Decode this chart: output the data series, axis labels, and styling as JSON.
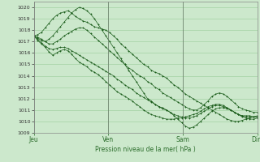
{
  "title": "Pression niveau de la mer( hPa )",
  "ylim": [
    1009,
    1020.5
  ],
  "yticks": [
    1009,
    1010,
    1011,
    1012,
    1013,
    1014,
    1015,
    1016,
    1017,
    1018,
    1019,
    1020
  ],
  "xtick_labels": [
    "Jeu",
    "Ven",
    "Sam",
    "Dim"
  ],
  "bg_color": "#cce8cc",
  "grid_color": "#99cc99",
  "line_color": "#1a5c1a",
  "series": [
    [
      1017.5,
      1017.6,
      1017.8,
      1018.2,
      1018.6,
      1019.0,
      1019.3,
      1019.5,
      1019.6,
      1019.7,
      1019.5,
      1019.2,
      1019.0,
      1018.8,
      1018.7,
      1018.5,
      1018.3,
      1018.2,
      1018.1,
      1018.0,
      1017.8,
      1017.5,
      1017.2,
      1016.8,
      1016.5,
      1016.2,
      1015.9,
      1015.6,
      1015.3,
      1015.0,
      1014.8,
      1014.5,
      1014.3,
      1014.2,
      1014.0,
      1013.8,
      1013.5,
      1013.2,
      1013.0,
      1012.7,
      1012.4,
      1012.2,
      1012.0,
      1011.8,
      1011.6,
      1011.4,
      1011.2,
      1011.0,
      1010.8,
      1010.6,
      1010.4,
      1010.2,
      1010.1,
      1010.0,
      1010.0,
      1010.1,
      1010.2,
      1010.3,
      1010.4,
      1010.5
    ],
    [
      1017.5,
      1017.3,
      1017.1,
      1017.0,
      1017.2,
      1017.5,
      1017.9,
      1018.3,
      1018.7,
      1019.1,
      1019.5,
      1019.8,
      1020.0,
      1019.9,
      1019.7,
      1019.4,
      1019.0,
      1018.5,
      1018.0,
      1017.5,
      1017.0,
      1016.5,
      1016.0,
      1015.5,
      1015.0,
      1014.5,
      1014.0,
      1013.5,
      1013.0,
      1012.5,
      1012.0,
      1011.8,
      1011.5,
      1011.3,
      1011.2,
      1011.0,
      1010.8,
      1010.5,
      1010.2,
      1009.9,
      1009.6,
      1009.4,
      1009.5,
      1009.7,
      1010.0,
      1010.3,
      1010.6,
      1010.9,
      1011.1,
      1011.2,
      1011.2,
      1011.1,
      1011.0,
      1010.8,
      1010.6,
      1010.4,
      1010.3,
      1010.2,
      1010.2,
      1010.3
    ],
    [
      1017.5,
      1017.2,
      1016.9,
      1016.6,
      1016.4,
      1016.3,
      1016.4,
      1016.5,
      1016.5,
      1016.4,
      1016.2,
      1016.0,
      1015.8,
      1015.6,
      1015.4,
      1015.2,
      1015.0,
      1014.8,
      1014.6,
      1014.4,
      1014.2,
      1014.0,
      1013.7,
      1013.5,
      1013.2,
      1013.0,
      1012.8,
      1012.5,
      1012.3,
      1012.1,
      1011.9,
      1011.7,
      1011.5,
      1011.3,
      1011.1,
      1011.0,
      1010.8,
      1010.6,
      1010.5,
      1010.4,
      1010.3,
      1010.3,
      1010.4,
      1010.5,
      1010.7,
      1010.9,
      1011.1,
      1011.3,
      1011.4,
      1011.4,
      1011.3,
      1011.2,
      1011.0,
      1010.8,
      1010.6,
      1010.5,
      1010.4,
      1010.4,
      1010.4,
      1010.4
    ],
    [
      1017.5,
      1017.1,
      1016.8,
      1016.5,
      1016.1,
      1015.8,
      1016.0,
      1016.2,
      1016.3,
      1016.2,
      1015.9,
      1015.5,
      1015.2,
      1015.0,
      1014.8,
      1014.5,
      1014.3,
      1014.1,
      1013.8,
      1013.5,
      1013.2,
      1012.9,
      1012.6,
      1012.4,
      1012.2,
      1012.0,
      1011.8,
      1011.5,
      1011.3,
      1011.0,
      1010.8,
      1010.6,
      1010.5,
      1010.4,
      1010.3,
      1010.2,
      1010.2,
      1010.2,
      1010.3,
      1010.3,
      1010.4,
      1010.5,
      1010.6,
      1010.7,
      1010.9,
      1011.1,
      1011.3,
      1011.4,
      1011.5,
      1011.5,
      1011.4,
      1011.2,
      1011.0,
      1010.8,
      1010.6,
      1010.5,
      1010.5,
      1010.5,
      1010.4,
      1010.4
    ],
    [
      1017.5,
      1017.4,
      1017.2,
      1017.0,
      1016.8,
      1016.8,
      1017.0,
      1017.2,
      1017.5,
      1017.7,
      1017.9,
      1018.1,
      1018.2,
      1018.2,
      1018.0,
      1017.7,
      1017.4,
      1017.1,
      1016.8,
      1016.5,
      1016.2,
      1015.9,
      1015.6,
      1015.3,
      1015.0,
      1014.7,
      1014.5,
      1014.2,
      1014.0,
      1013.8,
      1013.5,
      1013.3,
      1013.0,
      1012.8,
      1012.5,
      1012.3,
      1012.1,
      1011.9,
      1011.7,
      1011.5,
      1011.3,
      1011.1,
      1011.0,
      1011.0,
      1011.2,
      1011.5,
      1011.8,
      1012.2,
      1012.4,
      1012.5,
      1012.4,
      1012.2,
      1011.9,
      1011.6,
      1011.3,
      1011.1,
      1011.0,
      1010.9,
      1010.8,
      1010.8
    ]
  ]
}
